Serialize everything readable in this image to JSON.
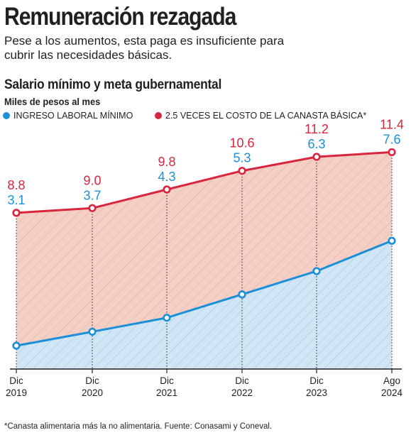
{
  "header": {
    "title": "Remuneración rezagada",
    "subtitle": "Pese a los aumentos, esta paga es insuficiente para cubrir las necesidades básicas."
  },
  "chart_data": {
    "type": "area",
    "title": "Salario mínimo y meta gubernamental",
    "ylabel": "Miles de pesos al mes",
    "categories": [
      [
        "Dic",
        "2019"
      ],
      [
        "Dic",
        "2020"
      ],
      [
        "Dic",
        "2021"
      ],
      [
        "Dic",
        "2022"
      ],
      [
        "Dic",
        "2023"
      ],
      [
        "Ago",
        "2024"
      ]
    ],
    "series": [
      {
        "name": "INGRESO LABORAL MÍNIMO",
        "values": [
          3.1,
          3.7,
          4.3,
          5.3,
          6.3,
          7.6
        ],
        "labels": [
          "3.1",
          "3.7",
          "4.3",
          "5.3",
          "6.3",
          "7.6"
        ],
        "color": "#1b8fd8",
        "fill": "#cfe6f6"
      },
      {
        "name": "2.5 VECES EL COSTO DE LA CANASTA BÁSICA*",
        "values": [
          8.8,
          9.0,
          9.8,
          10.6,
          11.2,
          11.4
        ],
        "labels": [
          "8.8",
          "9.0",
          "9.8",
          "10.6",
          "11.2",
          "11.4"
        ],
        "color": "#d7263d",
        "fill": "#f6cfc4"
      }
    ],
    "ylim": [
      2.1,
      12.6
    ],
    "grid": "vertical dotted",
    "legend": "top-left"
  },
  "footnote": "*Canasta alimentaria más la no alimentaria. Fuente: Conasami y  Coneval."
}
